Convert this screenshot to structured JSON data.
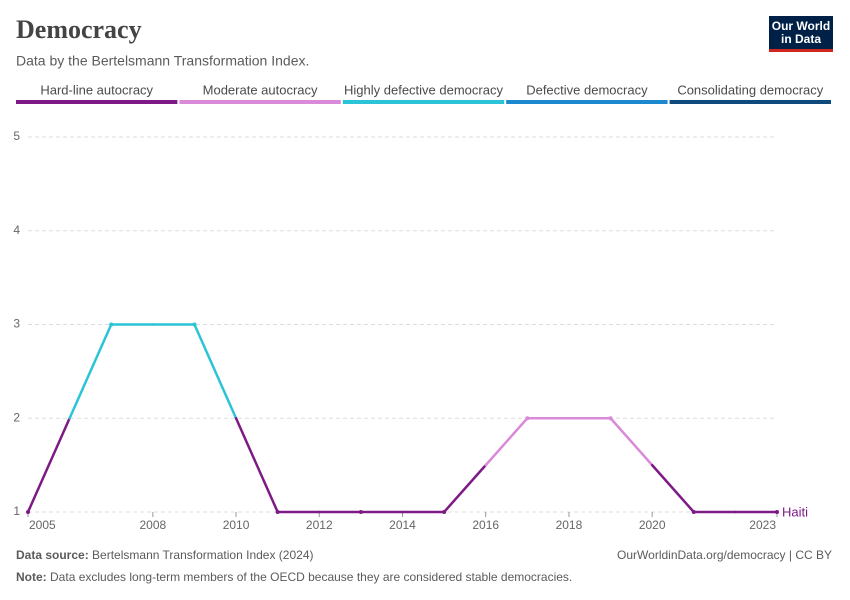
{
  "chart_data": {
    "type": "line",
    "title": "Democracy",
    "subtitle": "Data by the Bertelsmann Transformation Index.",
    "logo": [
      "Our World",
      "in Data"
    ],
    "legend": [
      {
        "name": "Hard-line autocracy",
        "color": "#7d1a86"
      },
      {
        "name": "Moderate autocracy",
        "color": "#d98ad9"
      },
      {
        "name": "Highly defective democracy",
        "color": "#2bc4d6"
      },
      {
        "name": "Defective democracy",
        "color": "#1e88cf"
      },
      {
        "name": "Consolidating democracy",
        "color": "#0f4a7c"
      }
    ],
    "x": [
      2005,
      2007,
      2009,
      2011,
      2013,
      2015,
      2017,
      2019,
      2021,
      2023
    ],
    "series": [
      {
        "name": "Haiti",
        "color": "#7d1a86",
        "values": [
          1,
          3,
          3,
          1,
          1,
          1,
          2,
          2,
          1,
          1
        ]
      }
    ],
    "xlim": [
      2005,
      2023
    ],
    "xticks": [
      2005,
      2008,
      2010,
      2012,
      2014,
      2016,
      2018,
      2020,
      2023
    ],
    "ylim": [
      1,
      5
    ],
    "yticks": [
      1,
      2,
      3,
      4,
      5
    ],
    "grid": true,
    "source_label": "Data source:",
    "source": "Bertelsmann Transformation Index (2024)",
    "credit": "OurWorldinData.org/democracy | CC BY",
    "note_label": "Note:",
    "note": "Data excludes long-term members of the OECD because they are considered stable democracies."
  }
}
